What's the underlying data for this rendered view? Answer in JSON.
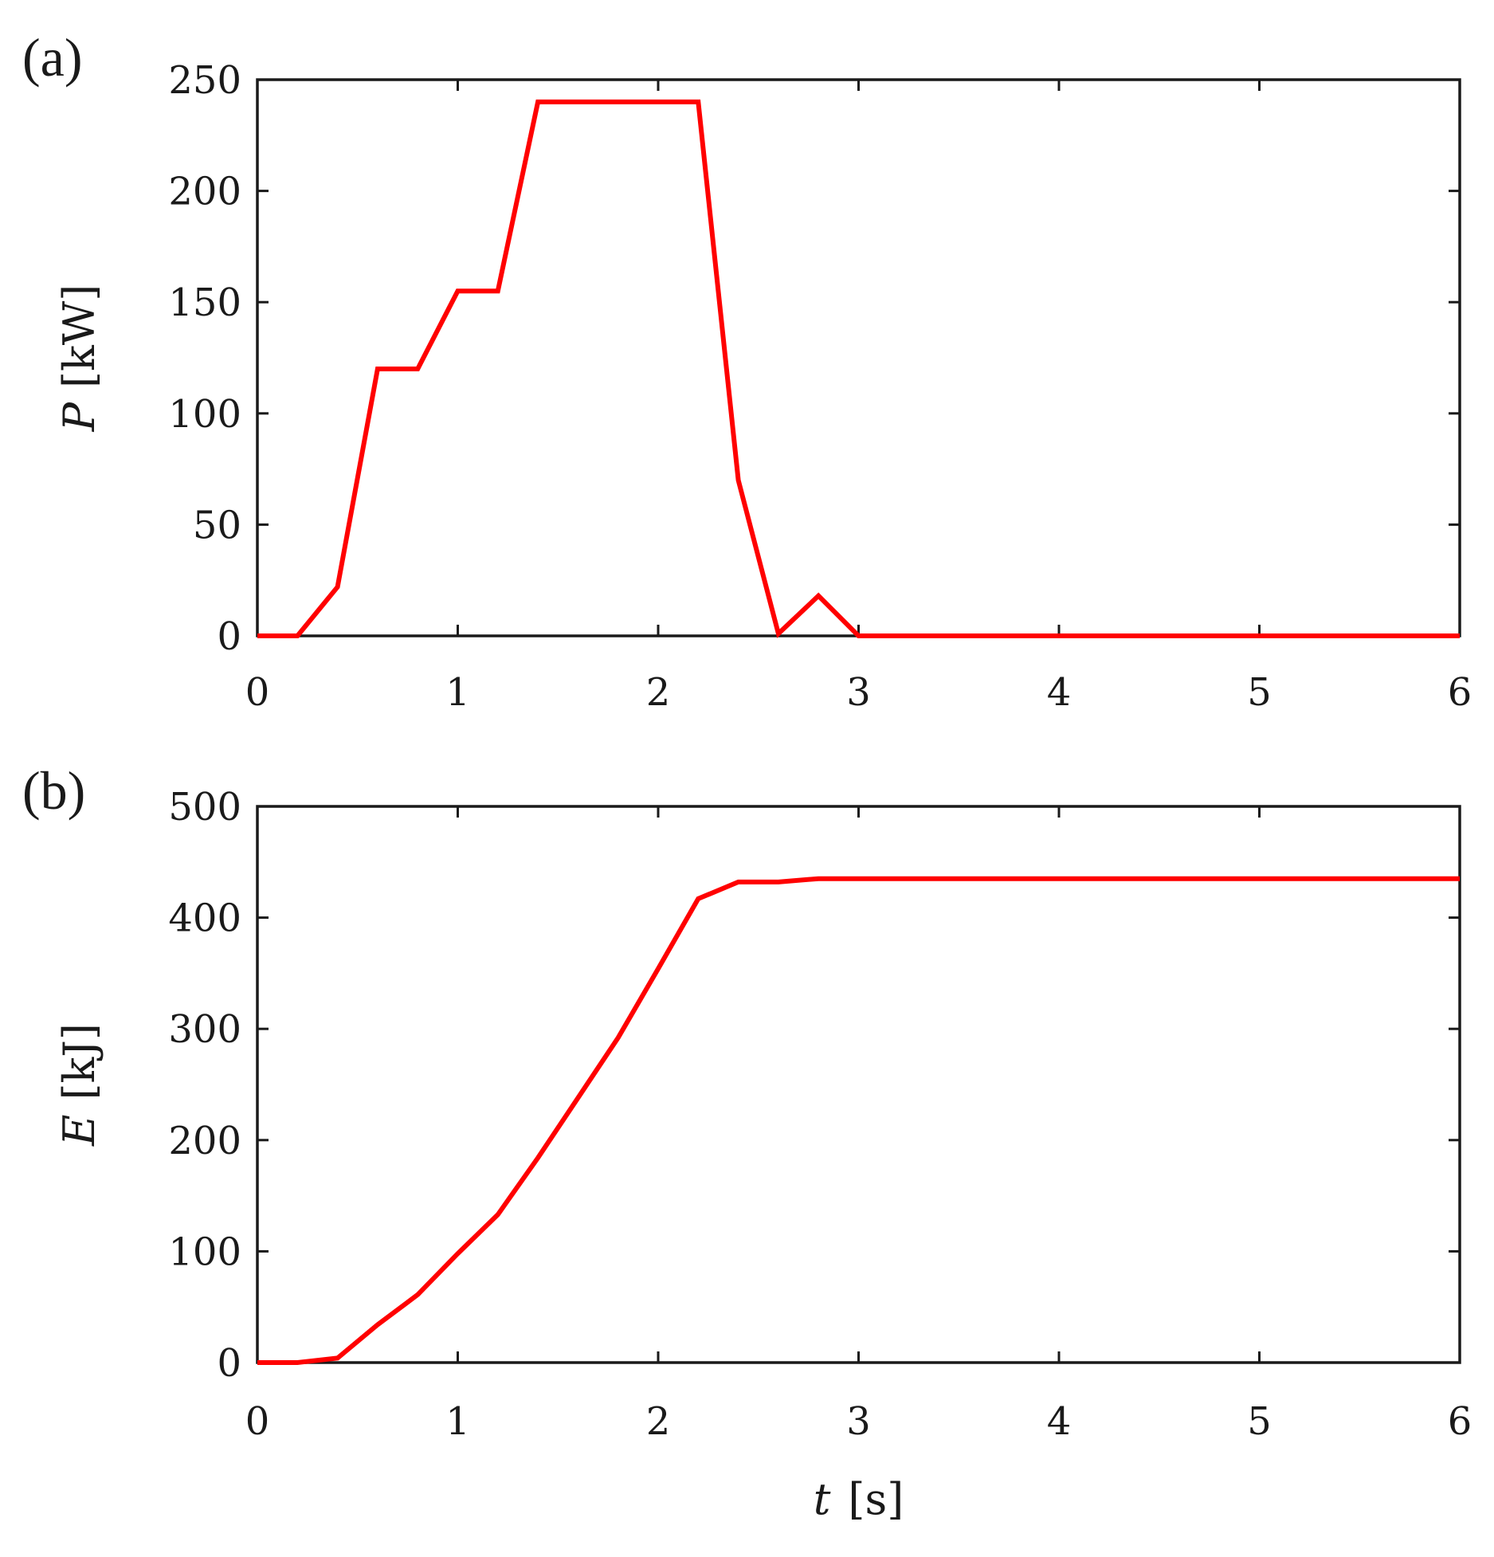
{
  "chart_data": [
    {
      "type": "line",
      "panel_label": "(a)",
      "ylabel": {
        "symbol": "P",
        "unit": "[kW]"
      },
      "xlabel": null,
      "xlim": [
        0,
        6
      ],
      "ylim": [
        0,
        250
      ],
      "xticks": [
        "0",
        "1",
        "2",
        "3",
        "4",
        "5",
        "6"
      ],
      "yticks": [
        "0",
        "50",
        "100",
        "150",
        "200",
        "250"
      ],
      "grid": false,
      "color": "#ff0000",
      "series": [
        {
          "x": [
            0,
            0.2,
            0.4,
            0.6,
            0.8,
            1.0,
            1.2,
            1.4,
            1.6,
            1.8,
            2.0,
            2.2,
            2.4,
            2.6,
            2.8,
            3.0,
            3.2,
            3.4,
            3.6,
            3.8,
            4.0,
            4.2,
            4.4,
            4.6,
            4.8,
            5.0,
            5.2,
            5.4,
            5.6,
            5.8,
            6.0
          ],
          "y": [
            0,
            0,
            22,
            120,
            120,
            155,
            155,
            240,
            240,
            240,
            240,
            240,
            70,
            1,
            18,
            0,
            0,
            0,
            0,
            0,
            0,
            0,
            0,
            0,
            0,
            0,
            0,
            0,
            0,
            0,
            0
          ]
        }
      ]
    },
    {
      "type": "line",
      "panel_label": "(b)",
      "ylabel": {
        "symbol": "E",
        "unit": "[kJ]"
      },
      "xlabel": {
        "symbol": "t",
        "unit": "[s]"
      },
      "xlim": [
        0,
        6
      ],
      "ylim": [
        0,
        500
      ],
      "xticks": [
        "0",
        "1",
        "2",
        "3",
        "4",
        "5",
        "6"
      ],
      "yticks": [
        "0",
        "100",
        "200",
        "300",
        "400",
        "500"
      ],
      "grid": false,
      "color": "#ff0000",
      "series": [
        {
          "x": [
            0,
            0.2,
            0.4,
            0.6,
            0.8,
            1.0,
            1.2,
            1.4,
            1.6,
            1.8,
            2.0,
            2.2,
            2.4,
            2.6,
            2.8,
            3.0,
            3.5,
            4.0,
            4.5,
            5.0,
            5.5,
            6.0
          ],
          "y": [
            0,
            0,
            4,
            34,
            61,
            98,
            133,
            184,
            238,
            292,
            354,
            417,
            432,
            432,
            435,
            435,
            435,
            435,
            435,
            435,
            435,
            435
          ]
        }
      ]
    }
  ]
}
